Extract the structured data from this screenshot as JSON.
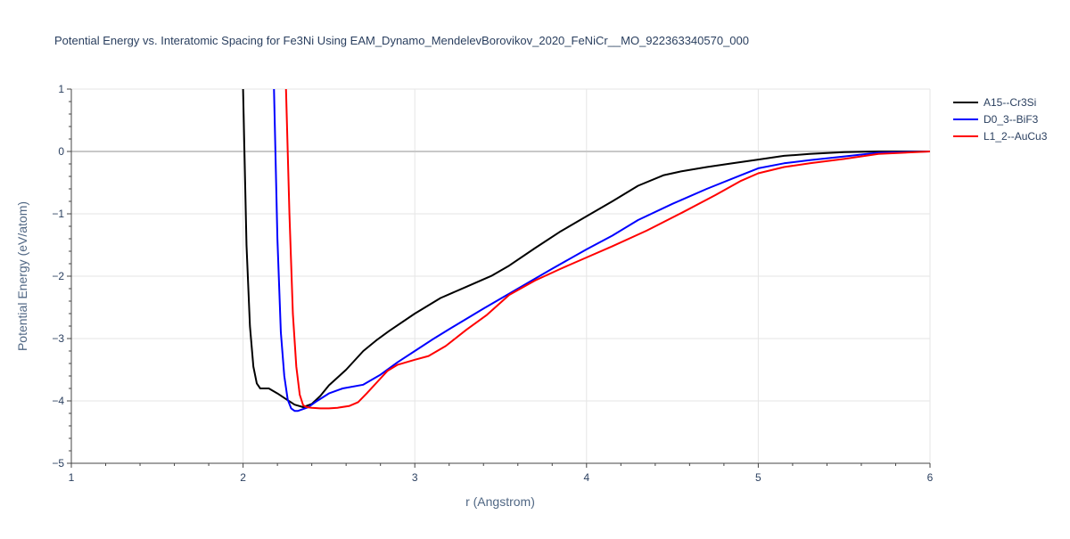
{
  "chart_data": {
    "type": "line",
    "title": "Potential Energy vs. Interatomic Spacing for Fe3Ni Using EAM_Dynamo_MendelevBorovikov_2020_FeNiCr__MO_922363340570_000",
    "xlabel": "r (Angstrom)",
    "ylabel": "Potential Energy (eV/atom)",
    "xlim": [
      1,
      6
    ],
    "ylim": [
      -5,
      1
    ],
    "x_ticks": [
      1,
      2,
      3,
      4,
      5,
      6
    ],
    "y_ticks": [
      1,
      0,
      -1,
      -2,
      -3,
      -4,
      -5
    ],
    "x_tick_labels": [
      "1",
      "2",
      "3",
      "4",
      "5",
      "6"
    ],
    "y_tick_labels": [
      "1",
      "0",
      "−1",
      "−2",
      "−3",
      "−4",
      "−5"
    ],
    "grid": true,
    "legend_position": "top-right",
    "series": [
      {
        "name": "A15--Cr3Si",
        "color": "#000000",
        "x": [
          2.0,
          2.02,
          2.04,
          2.06,
          2.08,
          2.1,
          2.15,
          2.2,
          2.25,
          2.3,
          2.35,
          2.4,
          2.45,
          2.5,
          2.6,
          2.7,
          2.78,
          2.85,
          3.0,
          3.15,
          3.3,
          3.45,
          3.55,
          3.7,
          3.85,
          4.0,
          4.15,
          4.3,
          4.45,
          4.55,
          4.7,
          4.85,
          5.0,
          5.15,
          5.3,
          5.5,
          5.7,
          6.0
        ],
        "y": [
          1.0,
          -1.5,
          -2.8,
          -3.45,
          -3.72,
          -3.8,
          -3.8,
          -3.88,
          -3.97,
          -4.06,
          -4.1,
          -4.05,
          -3.92,
          -3.75,
          -3.5,
          -3.2,
          -3.02,
          -2.88,
          -2.6,
          -2.35,
          -2.17,
          -1.99,
          -1.83,
          -1.55,
          -1.28,
          -1.04,
          -0.8,
          -0.55,
          -0.38,
          -0.32,
          -0.25,
          -0.19,
          -0.13,
          -0.07,
          -0.04,
          -0.01,
          0.0,
          0.0
        ]
      },
      {
        "name": "D0_3--BiF3",
        "color": "#0000ff",
        "x": [
          2.18,
          2.2,
          2.22,
          2.24,
          2.26,
          2.28,
          2.3,
          2.32,
          2.34,
          2.38,
          2.42,
          2.5,
          2.58,
          2.7,
          2.8,
          2.9,
          3.0,
          3.1,
          3.2,
          3.4,
          3.6,
          3.8,
          4.0,
          4.15,
          4.3,
          4.5,
          4.7,
          4.9,
          5.0,
          5.15,
          5.3,
          5.5,
          5.7,
          6.0
        ],
        "y": [
          1.0,
          -1.4,
          -2.9,
          -3.6,
          -3.98,
          -4.12,
          -4.16,
          -4.16,
          -4.14,
          -4.1,
          -4.02,
          -3.88,
          -3.8,
          -3.74,
          -3.58,
          -3.38,
          -3.2,
          -3.02,
          -2.85,
          -2.52,
          -2.2,
          -1.88,
          -1.57,
          -1.35,
          -1.1,
          -0.84,
          -0.6,
          -0.38,
          -0.27,
          -0.19,
          -0.14,
          -0.08,
          -0.02,
          0.0
        ]
      },
      {
        "name": "L1_2--AuCu3",
        "color": "#ff0000",
        "x": [
          2.25,
          2.27,
          2.29,
          2.31,
          2.33,
          2.35,
          2.37,
          2.4,
          2.45,
          2.5,
          2.55,
          2.62,
          2.67,
          2.72,
          2.78,
          2.84,
          2.9,
          3.0,
          3.08,
          3.18,
          3.3,
          3.42,
          3.55,
          3.7,
          3.85,
          4.0,
          4.15,
          4.35,
          4.55,
          4.75,
          4.9,
          5.0,
          5.15,
          5.3,
          5.5,
          5.7,
          6.0
        ],
        "y": [
          1.0,
          -1.0,
          -2.6,
          -3.45,
          -3.9,
          -4.07,
          -4.1,
          -4.11,
          -4.12,
          -4.12,
          -4.11,
          -4.08,
          -4.02,
          -3.88,
          -3.7,
          -3.52,
          -3.42,
          -3.34,
          -3.28,
          -3.12,
          -2.86,
          -2.62,
          -2.3,
          -2.07,
          -1.88,
          -1.7,
          -1.52,
          -1.27,
          -0.99,
          -0.7,
          -0.47,
          -0.35,
          -0.25,
          -0.19,
          -0.12,
          -0.04,
          0.0
        ]
      }
    ]
  }
}
